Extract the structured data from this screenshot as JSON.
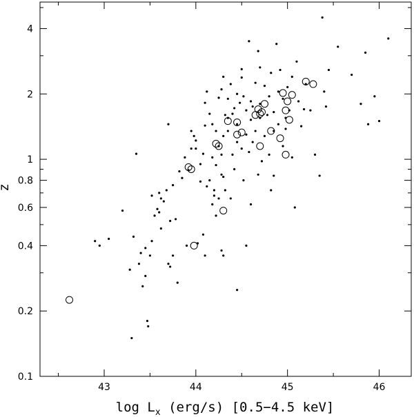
{
  "chart_data": {
    "type": "scatter",
    "title": "",
    "xlabel": {
      "main": "log L",
      "sub": "x",
      "rest": " (erg/s) [0.5−4.5 keV]"
    },
    "ylabel": "z",
    "xlim": [
      42.3,
      46.35
    ],
    "ylim": [
      0.1,
      5.3
    ],
    "yscale": "log",
    "grid": false,
    "x_ticks": [
      43,
      44,
      45,
      46
    ],
    "y_ticks": [
      {
        "value": 0.1,
        "label": "0.1"
      },
      {
        "value": 0.2,
        "label": "0.2"
      },
      {
        "value": 0.4,
        "label": "0.4"
      },
      {
        "value": 0.6,
        "label": "0.6"
      },
      {
        "value": 0.8,
        "label": "0.8"
      },
      {
        "value": 1,
        "label": "1"
      },
      {
        "value": 2,
        "label": "2"
      },
      {
        "value": 4,
        "label": "4"
      }
    ],
    "series": [
      {
        "marker": "dot",
        "color": "#000000",
        "points": [
          [
            42.9,
            0.42
          ],
          [
            42.95,
            0.4
          ],
          [
            43.05,
            0.43
          ],
          [
            43.2,
            0.58
          ],
          [
            43.28,
            0.31
          ],
          [
            43.3,
            0.15
          ],
          [
            43.32,
            0.44
          ],
          [
            43.35,
            1.06
          ],
          [
            43.38,
            0.33
          ],
          [
            43.4,
            0.37
          ],
          [
            43.42,
            0.26
          ],
          [
            43.45,
            0.39
          ],
          [
            43.45,
            0.29
          ],
          [
            43.47,
            0.18
          ],
          [
            43.48,
            0.17
          ],
          [
            43.5,
            0.36
          ],
          [
            43.52,
            0.42
          ],
          [
            43.52,
            0.68
          ],
          [
            43.55,
            0.55
          ],
          [
            43.58,
            0.59
          ],
          [
            43.6,
            0.57
          ],
          [
            43.6,
            0.7
          ],
          [
            43.62,
            0.66
          ],
          [
            43.62,
            0.48
          ],
          [
            43.65,
            0.64
          ],
          [
            43.68,
            0.72
          ],
          [
            43.7,
            0.33
          ],
          [
            43.72,
            0.32
          ],
          [
            43.72,
            0.52
          ],
          [
            43.75,
            0.36
          ],
          [
            43.75,
            0.76
          ],
          [
            43.78,
            0.53
          ],
          [
            43.8,
            0.27
          ],
          [
            43.82,
            0.88
          ],
          [
            43.85,
            0.82
          ],
          [
            43.88,
            1.02
          ],
          [
            43.7,
            1.45
          ],
          [
            43.9,
            0.4
          ],
          [
            43.92,
            0.89
          ],
          [
            43.95,
            1.12
          ],
          [
            43.98,
            1.28
          ],
          [
            44.0,
            1.22
          ],
          [
            44.02,
            0.41
          ],
          [
            44.05,
            0.79
          ],
          [
            44.05,
            0.95
          ],
          [
            44.08,
            1.06
          ],
          [
            44.1,
            1.43
          ],
          [
            44.1,
            1.82
          ],
          [
            44.12,
            2.05
          ],
          [
            44.15,
            0.8
          ],
          [
            44.15,
            1.62
          ],
          [
            44.18,
            1.02
          ],
          [
            44.2,
            0.72
          ],
          [
            44.2,
            0.68
          ],
          [
            44.22,
            0.94
          ],
          [
            44.22,
            1.35
          ],
          [
            44.25,
            0.66
          ],
          [
            44.25,
            1.92
          ],
          [
            44.28,
            1.05
          ],
          [
            44.28,
            2.1
          ],
          [
            44.3,
            0.36
          ],
          [
            44.3,
            0.83
          ],
          [
            44.32,
            1.6
          ],
          [
            44.35,
            1.35
          ],
          [
            44.38,
            0.66
          ],
          [
            44.38,
            2.22
          ],
          [
            44.4,
            1.05
          ],
          [
            44.42,
            1.72
          ],
          [
            44.45,
            1.45
          ],
          [
            44.45,
            0.25
          ],
          [
            44.48,
            1.82
          ],
          [
            44.5,
            1.12
          ],
          [
            44.5,
            2.38
          ],
          [
            44.52,
            1.95
          ],
          [
            44.55,
            1.3
          ],
          [
            44.55,
            0.4
          ],
          [
            44.58,
            3.5
          ],
          [
            44.6,
            0.62
          ],
          [
            44.6,
            1.52
          ],
          [
            44.62,
            1.2
          ],
          [
            44.65,
            2.25
          ],
          [
            44.68,
            3.15
          ],
          [
            44.7,
            1.8
          ],
          [
            44.72,
            0.98
          ],
          [
            44.75,
            2.18
          ],
          [
            44.78,
            1.6
          ],
          [
            44.8,
            1.05
          ],
          [
            44.82,
            2.5
          ],
          [
            44.85,
            0.84
          ],
          [
            44.88,
            3.4
          ],
          [
            44.9,
            1.45
          ],
          [
            44.92,
            2.58
          ],
          [
            44.95,
            1.15
          ],
          [
            44.95,
            1.9
          ],
          [
            44.98,
            1.38
          ],
          [
            45.0,
            2.15
          ],
          [
            45.02,
            1.68
          ],
          [
            45.05,
            2.4
          ],
          [
            45.05,
            1.02
          ],
          [
            45.08,
            0.6
          ],
          [
            45.1,
            2.82
          ],
          [
            45.12,
            1.85
          ],
          [
            45.15,
            1.42
          ],
          [
            45.18,
            1.7
          ],
          [
            45.2,
            2.22
          ],
          [
            45.25,
            1.68
          ],
          [
            45.3,
            1.05
          ],
          [
            45.35,
            0.84
          ],
          [
            45.38,
            4.5
          ],
          [
            45.4,
            2.05
          ],
          [
            45.42,
            1.75
          ],
          [
            45.45,
            2.58
          ],
          [
            45.55,
            3.3
          ],
          [
            45.7,
            2.45
          ],
          [
            45.8,
            1.8
          ],
          [
            45.85,
            3.1
          ],
          [
            45.88,
            1.45
          ],
          [
            45.95,
            1.95
          ],
          [
            46.0,
            1.5
          ],
          [
            46.1,
            3.6
          ],
          [
            43.95,
            1.35
          ],
          [
            44.0,
            1.12
          ],
          [
            44.35,
            1.9
          ],
          [
            44.4,
            1.62
          ],
          [
            44.6,
            1.85
          ],
          [
            44.65,
            1.35
          ],
          [
            44.7,
            1.55
          ],
          [
            44.8,
            1.95
          ],
          [
            44.85,
            1.65
          ],
          [
            44.9,
            2.05
          ],
          [
            44.62,
            1.75
          ],
          [
            44.55,
            1.68
          ],
          [
            44.45,
            2.0
          ],
          [
            44.35,
            1.55
          ],
          [
            44.3,
            1.28
          ],
          [
            44.25,
            1.15
          ],
          [
            44.75,
            1.28
          ],
          [
            44.85,
            1.35
          ],
          [
            44.98,
            1.55
          ],
          [
            44.45,
            1.2
          ],
          [
            44.58,
            1.08
          ],
          [
            44.18,
            1.45
          ],
          [
            44.12,
            0.75
          ],
          [
            44.18,
            0.62
          ],
          [
            44.32,
            0.72
          ],
          [
            44.28,
            0.85
          ],
          [
            44.22,
            0.55
          ],
          [
            44.42,
            0.9
          ],
          [
            44.52,
            0.8
          ],
          [
            44.68,
            0.85
          ],
          [
            44.82,
            0.72
          ],
          [
            44.7,
            2.65
          ],
          [
            44.5,
            2.6
          ],
          [
            44.3,
            2.4
          ],
          [
            44.1,
            0.36
          ],
          [
            44.28,
            0.38
          ],
          [
            44.08,
            0.45
          ]
        ]
      },
      {
        "marker": "circle",
        "color": "#000000",
        "points": [
          [
            42.62,
            0.225
          ],
          [
            43.92,
            0.92
          ],
          [
            43.95,
            0.9
          ],
          [
            43.98,
            0.4
          ],
          [
            44.22,
            1.18
          ],
          [
            44.25,
            1.15
          ],
          [
            44.3,
            0.58
          ],
          [
            44.35,
            1.5
          ],
          [
            44.45,
            1.3
          ],
          [
            44.5,
            1.33
          ],
          [
            44.45,
            1.48
          ],
          [
            44.65,
            1.6
          ],
          [
            44.7,
            1.62
          ],
          [
            44.68,
            1.7
          ],
          [
            44.72,
            1.65
          ],
          [
            44.75,
            1.8
          ],
          [
            44.82,
            1.35
          ],
          [
            44.92,
            1.25
          ],
          [
            44.95,
            2.02
          ],
          [
            44.98,
            1.68
          ],
          [
            45.0,
            1.85
          ],
          [
            45.02,
            1.52
          ],
          [
            45.05,
            1.98
          ],
          [
            44.98,
            1.05
          ],
          [
            45.2,
            2.28
          ],
          [
            45.28,
            2.22
          ],
          [
            44.7,
            1.15
          ]
        ]
      }
    ]
  }
}
